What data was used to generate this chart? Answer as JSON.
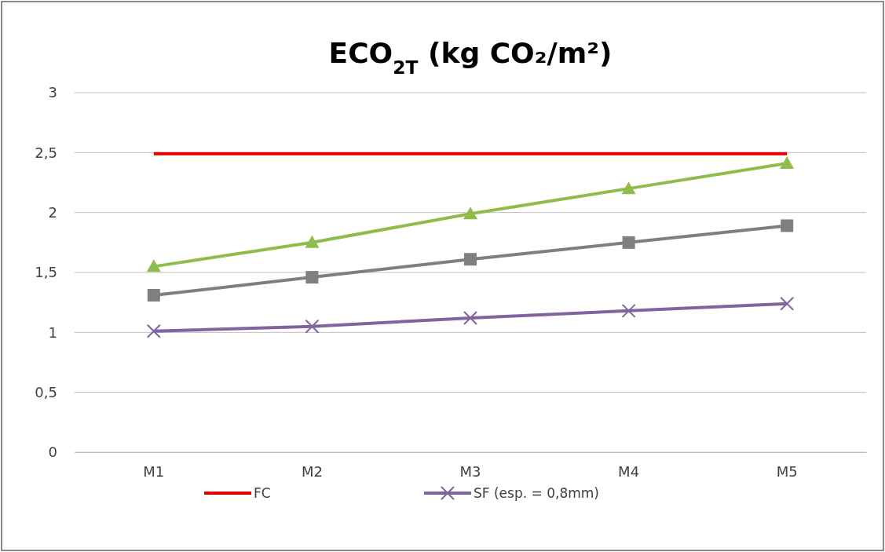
{
  "chart_data": {
    "type": "line",
    "title": "ECO$_{2T}$ (kg CO₂/m²)",
    "categories": [
      "M1",
      "M2",
      "M3",
      "M4",
      "M5"
    ],
    "series": [
      {
        "name": "FC",
        "color": "#e00000",
        "values": [
          2.49,
          2.49,
          2.49,
          2.49,
          2.49
        ],
        "marker": "none"
      },
      {
        "color": "#8fbc4c",
        "values": [
          1.55,
          1.75,
          1.99,
          2.2,
          2.41
        ],
        "marker": "triangle"
      },
      {
        "color": "#7f7f7f",
        "values": [
          1.31,
          1.46,
          1.61,
          1.75,
          1.89
        ],
        "marker": "square"
      },
      {
        "name": "SF (esp. = 0,8mm)",
        "color": "#8064a2",
        "values": [
          1.01,
          1.05,
          1.12,
          1.18,
          1.24
        ],
        "marker": "cross"
      }
    ],
    "ylim": [
      0,
      3
    ],
    "yticks": [
      {
        "value": 0,
        "label": "0"
      },
      {
        "value": 0.5,
        "label": "0,5"
      },
      {
        "value": 1,
        "label": "1"
      },
      {
        "value": 1.5,
        "label": "1,5"
      },
      {
        "value": 2,
        "label": "2"
      },
      {
        "value": 2.5,
        "label": "2,5"
      },
      {
        "value": 3,
        "label": "3"
      }
    ],
    "grid": "y",
    "legend": "bottom",
    "line_style": "solid"
  }
}
